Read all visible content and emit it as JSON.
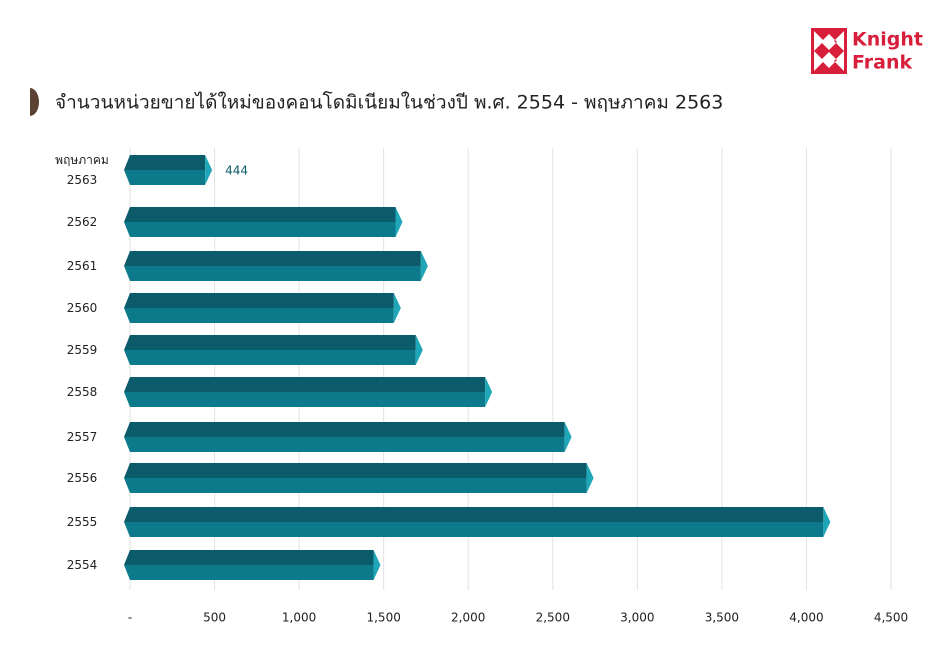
{
  "logo": {
    "line1": "Knight",
    "line2": "Frank"
  },
  "chart_data": {
    "type": "bar",
    "orientation": "horizontal",
    "title": "จำนวนหน่วยขายได้ใหม่ของคอนโดมิเนียมในช่วงปี พ.ศ. 2554 - พฤษภาคม 2563",
    "categories": [
      "พฤษภาคม\n2563",
      "2562",
      "2561",
      "2560",
      "2559",
      "2558",
      "2557",
      "2556",
      "2555",
      "2554"
    ],
    "values": [
      444,
      1570,
      1720,
      1560,
      1690,
      2100,
      2570,
      2700,
      4100,
      1440
    ],
    "value_labels": [
      "444",
      null,
      null,
      null,
      null,
      null,
      null,
      null,
      null,
      null
    ],
    "color": "#0d7a8c",
    "xlim": [
      0,
      4500
    ],
    "xticks": [
      {
        "value": 0,
        "label": "-"
      },
      500,
      {
        "value": 1000,
        "label": "1,000"
      },
      {
        "value": 1500,
        "label": "1,500"
      },
      {
        "value": 2000,
        "label": "2,000"
      },
      {
        "value": 2500,
        "label": "2,500"
      },
      {
        "value": 3000,
        "label": "3,000"
      },
      {
        "value": 3500,
        "label": "3,500"
      },
      {
        "value": 4000,
        "label": "4,000"
      },
      {
        "value": 4500,
        "label": "4,500"
      }
    ],
    "grid": true
  }
}
